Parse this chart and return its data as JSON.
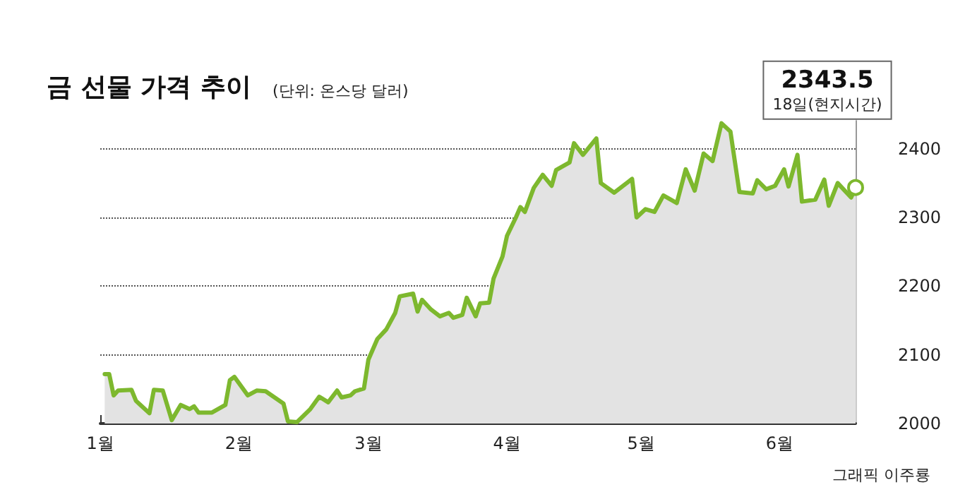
{
  "chart_data": {
    "type": "area",
    "title": "금 선물 가격 추이",
    "subtitle": "(단위: 온스당 달러)",
    "x": [
      "--01-02",
      "--01-03",
      "--01-04",
      "--01-05",
      "--01-08",
      "--01-09",
      "--01-10",
      "--01-12",
      "--01-13",
      "--01-15",
      "--01-17",
      "--01-19",
      "--01-21",
      "--01-22",
      "--01-23",
      "--01-26",
      "--01-29",
      "--01-30",
      "--01-31",
      "--02-03",
      "--02-05",
      "--02-07",
      "--02-11",
      "--02-12",
      "--02-14",
      "--02-17",
      "--02-19",
      "--02-21",
      "--02-23",
      "--02-24",
      "--02-26",
      "--02-27",
      "--02-29",
      "--03-01",
      "--03-03",
      "--03-05",
      "--03-07",
      "--03-08",
      "--03-11",
      "--03-12",
      "--03-13",
      "--03-15",
      "--03-17",
      "--03-19",
      "--03-20",
      "--03-22",
      "--03-23",
      "--03-25",
      "--03-26",
      "--03-28",
      "--03-29",
      "--03-31",
      "--04-01",
      "--04-03",
      "--04-04",
      "--04-05",
      "--04-07",
      "--04-09",
      "--04-11",
      "--04-12",
      "--04-15",
      "--04-16",
      "--04-18",
      "--04-21",
      "--04-22",
      "--04-25",
      "--04-29",
      "--04-30",
      "--05-02",
      "--05-04",
      "--05-06",
      "--05-09",
      "--05-11",
      "--05-13",
      "--05-15",
      "--05-17",
      "--05-19",
      "--05-21",
      "--05-23",
      "--05-26",
      "--05-27",
      "--05-29",
      "--05-31",
      "--06-02",
      "--06-03",
      "--06-05",
      "--06-06",
      "--06-09",
      "--06-11",
      "--06-12",
      "--06-14",
      "--06-17",
      "--06-18"
    ],
    "series": [
      {
        "color": "#7db82e",
        "values": [
          2072,
          2072,
          2041,
          2048,
          2049,
          2033,
          2027,
          2015,
          2049,
          2048,
          2005,
          2027,
          2021,
          2025,
          2016,
          2016,
          2027,
          2063,
          2068,
          2041,
          2048,
          2047,
          2029,
          2003,
          2002,
          2021,
          2039,
          2031,
          2048,
          2038,
          2041,
          2047,
          2051,
          2093,
          2123,
          2137,
          2161,
          2185,
          2189,
          2163,
          2180,
          2166,
          2156,
          2161,
          2154,
          2158,
          2183,
          2156,
          2175,
          2176,
          2211,
          2243,
          2273,
          2300,
          2315,
          2308,
          2343,
          2362,
          2346,
          2369,
          2380,
          2408,
          2391,
          2415,
          2350,
          2336,
          2356,
          2300,
          2312,
          2308,
          2332,
          2321,
          2370,
          2339,
          2393,
          2382,
          2437,
          2425,
          2337,
          2335,
          2354,
          2341,
          2346,
          2370,
          2345,
          2391,
          2323,
          2326,
          2355,
          2317,
          2350,
          2329,
          2343.5
        ]
      }
    ],
    "ylim": [
      2000,
      2450
    ],
    "yticks": [
      2000,
      2100,
      2200,
      2300,
      2400
    ],
    "xlim": [
      "--01-01",
      "--06-18"
    ],
    "xticks": [
      {
        "value": "--01-01",
        "label": "1월"
      },
      {
        "value": "--02-01",
        "label": "2월"
      },
      {
        "value": "--03-01",
        "label": "3월"
      },
      {
        "value": "--04-01",
        "label": "4월"
      },
      {
        "value": "--05-01",
        "label": "5월"
      },
      {
        "value": "--06-01",
        "label": "6월"
      }
    ],
    "grid": "y",
    "marker": "none",
    "line_style": "solid",
    "annotations": [
      {
        "text": "2343.5\n18일(현지시간)",
        "x": "--06-18",
        "y": 2343.5
      },
      "그래픽 이주룡"
    ]
  }
}
